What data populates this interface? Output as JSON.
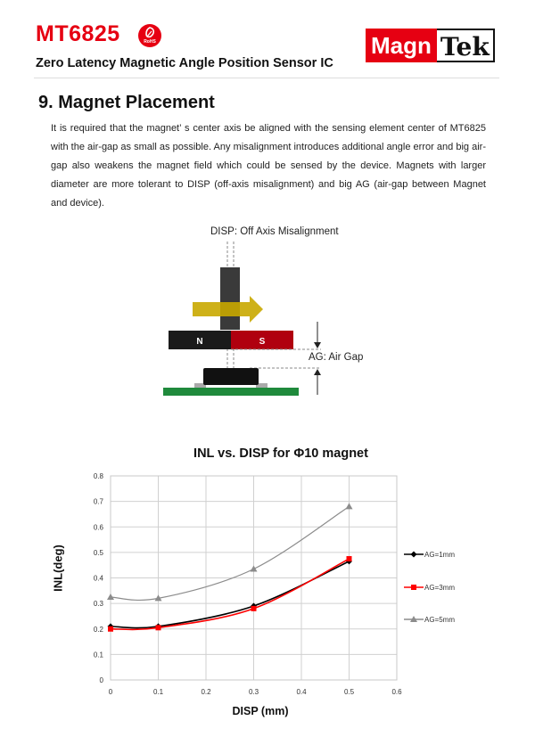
{
  "header": {
    "title": "MT6825",
    "rohs": "RoHS",
    "subtitle": "Zero Latency Magnetic Angle Position Sensor IC",
    "logo_part1": "Magn",
    "logo_part2": "Tek"
  },
  "section": {
    "title": "9.  Magnet Placement",
    "body": "It is required that the magnet’ s center axis be aligned with the sensing element center of MT6825 with the air-gap as small as possible. Any misalignment introduces additional angle error and big air-gap also weakens the magnet field which could be sensed by the device. Magnets with larger diameter are more tolerant to DISP (off-axis misalignment) and big AG (air-gap between Magnet and device)."
  },
  "diagram": {
    "disp_label": "DISP:  Off Axis Misalignment",
    "ag_label": "AG:  Air Gap",
    "north": "N",
    "south": "S"
  },
  "colors": {
    "brand_red": "#e60012",
    "magnet_black": "#1a1a1a",
    "magnet_red": "#b0000f",
    "arrow_yellow": "#c9a800",
    "pcb_green": "#1f8a3c"
  },
  "chart_data": {
    "type": "line",
    "title": "INL vs. DISP for Φ10 magnet",
    "xlabel": "DISP (mm)",
    "ylabel": "INL(deg)",
    "xlim": [
      0,
      0.6
    ],
    "ylim": [
      0,
      0.8
    ],
    "x_ticks": [
      "0",
      "0.1",
      "0.2",
      "0.3",
      "0.4",
      "0.5",
      "0.6"
    ],
    "y_ticks": [
      "0",
      "0.1",
      "0.2",
      "0.3",
      "0.4",
      "0.5",
      "0.6",
      "0.7",
      "0.8"
    ],
    "grid": true,
    "legend_position": "right",
    "x": [
      0,
      0.1,
      0.3,
      0.5
    ],
    "series": [
      {
        "name": "AG=1mm",
        "values": [
          0.21,
          0.21,
          0.29,
          0.465
        ],
        "color": "#000000",
        "marker": "diamond"
      },
      {
        "name": "AG=3mm",
        "values": [
          0.2,
          0.205,
          0.28,
          0.475
        ],
        "color": "#ff0000",
        "marker": "square"
      },
      {
        "name": "AG=5mm",
        "values": [
          0.325,
          0.32,
          0.435,
          0.68
        ],
        "color": "#8c8c8c",
        "marker": "triangle"
      }
    ]
  }
}
